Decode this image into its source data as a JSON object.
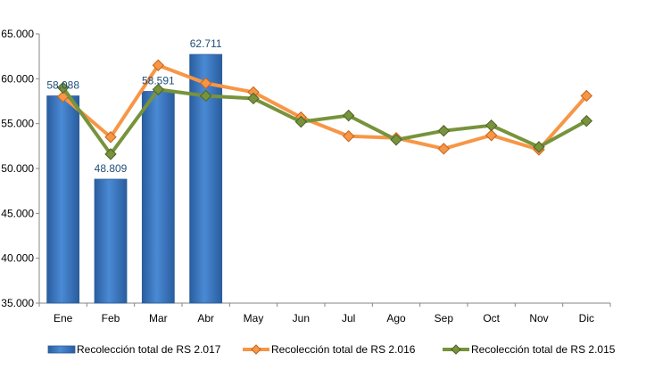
{
  "chart_data": {
    "type": "bar",
    "title": "",
    "xlabel": "",
    "ylabel": "",
    "categories": [
      "Ene",
      "Feb",
      "Mar",
      "Abr",
      "May",
      "Jun",
      "Jul",
      "Ago",
      "Sep",
      "Oct",
      "Nov",
      "Dic"
    ],
    "ylim": [
      35000,
      65000
    ],
    "yticks": [
      35000,
      40000,
      45000,
      50000,
      55000,
      60000,
      65000
    ],
    "ytick_labels": [
      "35.000",
      "40.000",
      "45.000",
      "50.000",
      "55.000",
      "60.000",
      "65.000"
    ],
    "grid": false,
    "legend_position": "bottom",
    "series": [
      {
        "name": "Recolección total de RS 2.017",
        "kind": "bar",
        "color": "#3b78c2",
        "values": [
          58088,
          48809,
          58591,
          62711,
          null,
          null,
          null,
          null,
          null,
          null,
          null,
          null
        ],
        "labels": [
          "58.088",
          "48.809",
          "58.591",
          "62.711"
        ]
      },
      {
        "name": "Recolección total de RS 2.016",
        "kind": "line",
        "color": "#f79646",
        "marker": "diamond",
        "values": [
          58000,
          53500,
          61500,
          59500,
          58500,
          55700,
          53600,
          53400,
          52200,
          53700,
          52100,
          58100
        ]
      },
      {
        "name": "Recolección total de RS 2.015",
        "kind": "line",
        "color": "#77933c",
        "marker": "diamond",
        "values": [
          59000,
          51600,
          58800,
          58100,
          57800,
          55200,
          55900,
          53200,
          54200,
          54800,
          52400,
          55300
        ]
      }
    ]
  }
}
